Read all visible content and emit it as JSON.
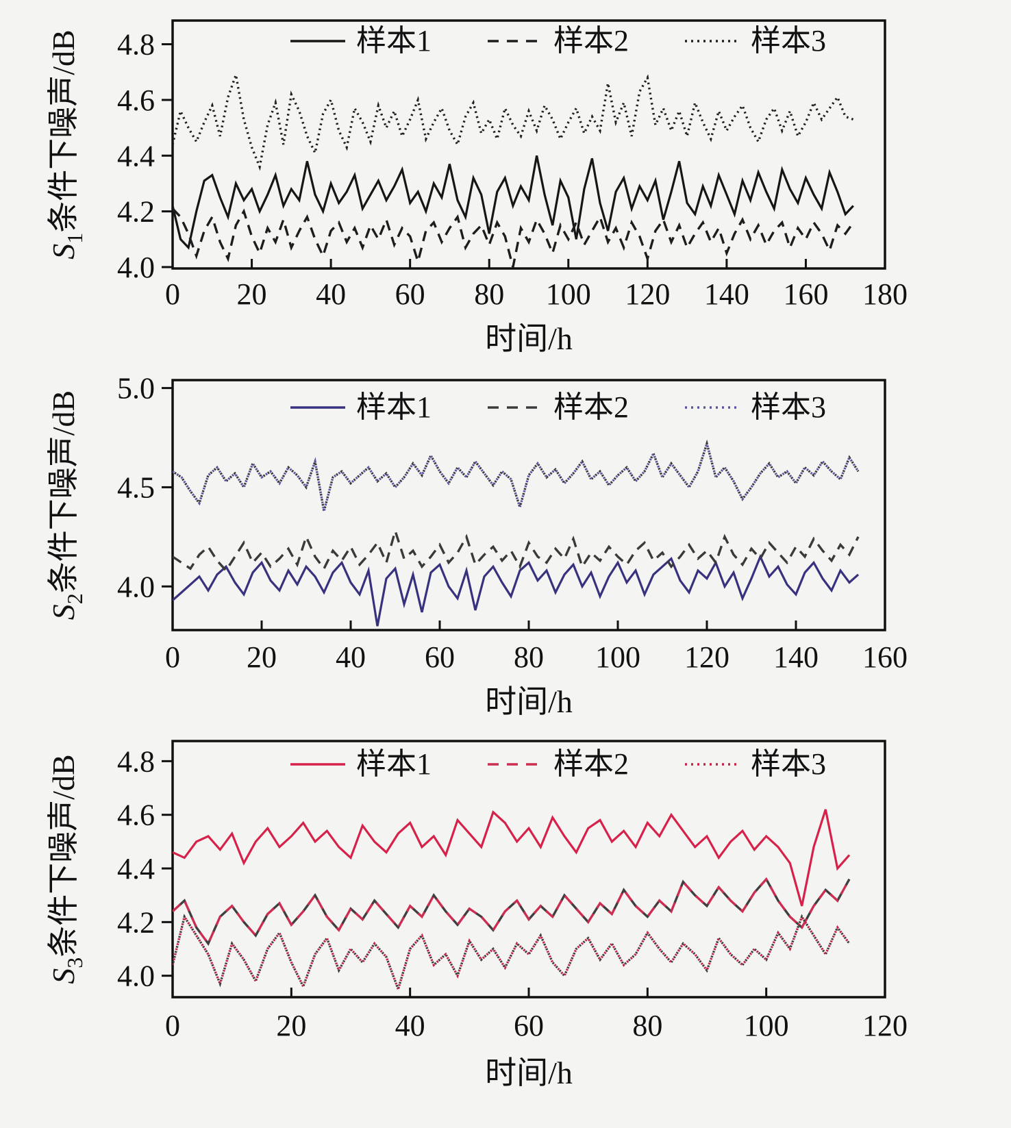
{
  "figure": {
    "background": "#f4f4f2",
    "frame_color": "#111111"
  },
  "chart_data": [
    {
      "type": "line",
      "title": "",
      "y_label": {
        "prefix": "S",
        "sub": "1",
        "rest": "条件下噪声/dB"
      },
      "x_label": "时间/h",
      "x_range": [
        0,
        180
      ],
      "x_ticks": [
        0,
        20,
        40,
        60,
        80,
        100,
        120,
        140,
        160,
        180
      ],
      "y_range": [
        3.995,
        4.885
      ],
      "y_ticks": [
        {
          "label": "4.8",
          "value": 4.8
        },
        {
          "label": "4.6",
          "value": 4.6
        },
        {
          "label": "4.4",
          "value": 4.4
        },
        {
          "label": "4.2",
          "value": 4.2
        },
        {
          "label": "4.0",
          "value": 4.0
        }
      ],
      "grid": false,
      "legend_position": "top-inside",
      "legend": [
        {
          "label": "样本1",
          "style": "solid"
        },
        {
          "label": "样本2",
          "style": "dashed"
        },
        {
          "label": "样本3",
          "style": "dotted"
        }
      ],
      "series": [
        {
          "name": "样本1",
          "style": "solid",
          "color": "#161616",
          "x_start": 0,
          "x_step": 2,
          "values": [
            4.22,
            4.1,
            4.07,
            4.2,
            4.31,
            4.33,
            4.25,
            4.18,
            4.3,
            4.24,
            4.28,
            4.2,
            4.26,
            4.33,
            4.22,
            4.28,
            4.24,
            4.38,
            4.26,
            4.2,
            4.3,
            4.23,
            4.27,
            4.33,
            4.21,
            4.26,
            4.31,
            4.24,
            4.29,
            4.35,
            4.23,
            4.27,
            4.2,
            4.3,
            4.25,
            4.37,
            4.24,
            4.18,
            4.32,
            4.26,
            4.12,
            4.27,
            4.32,
            4.22,
            4.29,
            4.24,
            4.4,
            4.26,
            4.15,
            4.31,
            4.25,
            4.1,
            4.28,
            4.39,
            4.23,
            4.13,
            4.27,
            4.32,
            4.21,
            4.29,
            4.24,
            4.31,
            4.17,
            4.27,
            4.38,
            4.23,
            4.19,
            4.29,
            4.22,
            4.33,
            4.26,
            4.19,
            4.31,
            4.24,
            4.34,
            4.27,
            4.21,
            4.35,
            4.28,
            4.23,
            4.32,
            4.26,
            4.21,
            4.34,
            4.27,
            4.19,
            4.22
          ]
        },
        {
          "name": "样本2",
          "style": "dashed",
          "color": "#1d1d1d",
          "x_start": 0,
          "x_step": 2,
          "values": [
            4.21,
            4.18,
            4.12,
            4.04,
            4.13,
            4.18,
            4.09,
            4.03,
            4.15,
            4.2,
            4.11,
            4.05,
            4.14,
            4.09,
            4.17,
            4.07,
            4.13,
            4.18,
            4.1,
            4.04,
            4.13,
            4.16,
            4.09,
            4.14,
            4.07,
            4.15,
            4.1,
            4.17,
            4.08,
            4.14,
            4.11,
            4.02,
            4.13,
            4.16,
            4.09,
            4.14,
            4.18,
            4.07,
            4.12,
            4.15,
            4.08,
            4.16,
            4.11,
            4.0,
            4.14,
            4.09,
            4.17,
            4.12,
            4.05,
            4.15,
            4.1,
            4.16,
            4.08,
            4.13,
            4.18,
            4.09,
            4.14,
            4.07,
            4.16,
            4.11,
            4.03,
            4.13,
            4.17,
            4.09,
            4.15,
            4.07,
            4.12,
            4.16,
            4.09,
            4.14,
            4.05,
            4.12,
            4.17,
            4.1,
            4.15,
            4.08,
            4.13,
            4.16,
            4.07,
            4.14,
            4.1,
            4.16,
            4.12,
            4.06,
            4.15,
            4.12,
            4.16
          ]
        },
        {
          "name": "样本3",
          "style": "dotted",
          "color": "#202020",
          "x_start": 0,
          "x_step": 2,
          "values": [
            4.44,
            4.56,
            4.5,
            4.45,
            4.52,
            4.58,
            4.47,
            4.61,
            4.69,
            4.53,
            4.43,
            4.36,
            4.51,
            4.59,
            4.44,
            4.62,
            4.56,
            4.47,
            4.41,
            4.55,
            4.6,
            4.49,
            4.43,
            4.57,
            4.52,
            4.45,
            4.58,
            4.5,
            4.56,
            4.47,
            4.53,
            4.6,
            4.46,
            4.52,
            4.57,
            4.49,
            4.44,
            4.54,
            4.59,
            4.48,
            4.53,
            4.46,
            4.57,
            4.51,
            4.47,
            4.56,
            4.49,
            4.58,
            4.53,
            4.46,
            4.52,
            4.57,
            4.48,
            4.54,
            4.49,
            4.66,
            4.52,
            4.59,
            4.47,
            4.63,
            4.68,
            4.51,
            4.57,
            4.49,
            4.56,
            4.47,
            4.59,
            4.52,
            4.46,
            4.56,
            4.49,
            4.54,
            4.58,
            4.5,
            4.45,
            4.53,
            4.57,
            4.49,
            4.56,
            4.47,
            4.52,
            4.59,
            4.53,
            4.57,
            4.61,
            4.54,
            4.53
          ]
        }
      ]
    },
    {
      "type": "line",
      "title": "",
      "y_label": {
        "prefix": "S",
        "sub": "2",
        "rest": "条件下噪声/dB"
      },
      "x_label": "时间/h",
      "x_range": [
        0,
        160
      ],
      "x_ticks": [
        0,
        20,
        40,
        60,
        80,
        100,
        120,
        140,
        160
      ],
      "y_range": [
        3.78,
        5.04
      ],
      "y_ticks": [
        {
          "label": "5.0",
          "value": 5.0
        },
        {
          "label": "4.5",
          "value": 4.5
        },
        {
          "label": "4.0",
          "value": 4.0
        }
      ],
      "grid": false,
      "legend_position": "top-inside",
      "legend": [
        {
          "label": "样本1",
          "style": "solid"
        },
        {
          "label": "样本2",
          "style": "dashed"
        },
        {
          "label": "样本3",
          "style": "dotted"
        }
      ],
      "series": [
        {
          "name": "样本1",
          "style": "solid",
          "color": "#38327e",
          "x_start": 0,
          "x_step": 2,
          "values": [
            3.93,
            3.97,
            4.01,
            4.05,
            3.98,
            4.06,
            4.1,
            4.02,
            3.96,
            4.07,
            4.12,
            4.03,
            3.98,
            4.08,
            4.01,
            4.1,
            4.05,
            3.97,
            4.07,
            4.12,
            4.02,
            3.96,
            4.08,
            3.8,
            4.04,
            4.09,
            3.91,
            4.06,
            3.87,
            4.07,
            4.11,
            4.0,
            3.94,
            4.08,
            3.88,
            4.05,
            4.1,
            4.02,
            3.95,
            4.08,
            4.12,
            4.03,
            4.08,
            3.97,
            4.06,
            4.11,
            4.0,
            4.07,
            3.95,
            4.05,
            4.12,
            4.02,
            4.08,
            3.96,
            4.06,
            4.1,
            4.14,
            4.03,
            3.97,
            4.08,
            4.04,
            4.12,
            4.0,
            4.07,
            3.94,
            4.04,
            4.15,
            4.05,
            4.1,
            4.01,
            3.96,
            4.07,
            4.12,
            4.04,
            3.98,
            4.08,
            4.02,
            4.06
          ]
        },
        {
          "name": "样本2",
          "style": "dashed",
          "color": "#3a3a3a",
          "x_start": 0,
          "x_step": 2,
          "values": [
            4.15,
            4.12,
            4.09,
            4.16,
            4.2,
            4.13,
            4.08,
            4.15,
            4.22,
            4.12,
            4.17,
            4.1,
            4.14,
            4.19,
            4.11,
            4.25,
            4.15,
            4.09,
            4.18,
            4.13,
            4.2,
            4.11,
            4.16,
            4.22,
            4.12,
            4.28,
            4.14,
            4.18,
            4.1,
            4.15,
            4.21,
            4.12,
            4.17,
            4.25,
            4.11,
            4.16,
            4.2,
            4.13,
            4.18,
            4.1,
            4.22,
            4.15,
            4.12,
            4.19,
            4.14,
            4.24,
            4.1,
            4.17,
            4.13,
            4.2,
            4.15,
            4.11,
            4.18,
            4.22,
            4.13,
            4.17,
            4.1,
            4.15,
            4.21,
            4.14,
            4.18,
            4.12,
            4.25,
            4.16,
            4.11,
            4.19,
            4.14,
            4.22,
            4.17,
            4.12,
            4.2,
            4.15,
            4.24,
            4.18,
            4.13,
            4.21,
            4.16,
            4.25
          ]
        },
        {
          "name": "样本3",
          "style": "dotted",
          "color": "#5a55a0",
          "shadow_color": "#3a3a3a",
          "x_start": 0,
          "x_step": 2,
          "values": [
            4.58,
            4.55,
            4.48,
            4.42,
            4.56,
            4.6,
            4.53,
            4.57,
            4.5,
            4.62,
            4.55,
            4.58,
            4.52,
            4.6,
            4.56,
            4.5,
            4.63,
            4.38,
            4.55,
            4.58,
            4.52,
            4.56,
            4.6,
            4.53,
            4.57,
            4.5,
            4.55,
            4.62,
            4.56,
            4.66,
            4.58,
            4.52,
            4.6,
            4.55,
            4.63,
            4.57,
            4.51,
            4.58,
            4.54,
            4.4,
            4.56,
            4.62,
            4.55,
            4.59,
            4.52,
            4.57,
            4.63,
            4.54,
            4.58,
            4.51,
            4.56,
            4.6,
            4.53,
            4.58,
            4.67,
            4.55,
            4.62,
            4.56,
            4.5,
            4.58,
            4.72,
            4.55,
            4.6,
            4.53,
            4.44,
            4.5,
            4.57,
            4.62,
            4.55,
            4.58,
            4.52,
            4.6,
            4.56,
            4.63,
            4.58,
            4.54,
            4.65,
            4.58
          ]
        }
      ]
    },
    {
      "type": "line",
      "title": "",
      "y_label": {
        "prefix": "S",
        "sub": "3",
        "rest": "条件下噪声/dB"
      },
      "x_label": "时间/h",
      "x_range": [
        0,
        120
      ],
      "x_ticks": [
        0,
        20,
        40,
        60,
        80,
        100,
        120
      ],
      "y_range": [
        3.92,
        4.875
      ],
      "y_ticks": [
        {
          "label": "4.8",
          "value": 4.8
        },
        {
          "label": "4.6",
          "value": 4.6
        },
        {
          "label": "4.4",
          "value": 4.4
        },
        {
          "label": "4.2",
          "value": 4.2
        },
        {
          "label": "4.0",
          "value": 4.0
        }
      ],
      "grid": false,
      "legend_position": "top-inside",
      "legend": [
        {
          "label": "样本1",
          "style": "solid"
        },
        {
          "label": "样本2",
          "style": "dashed"
        },
        {
          "label": "样本3",
          "style": "dotted"
        }
      ],
      "series": [
        {
          "name": "样本1",
          "style": "solid",
          "color": "#d6224a",
          "x_start": 0,
          "x_step": 2,
          "values": [
            4.46,
            4.44,
            4.5,
            4.52,
            4.47,
            4.53,
            4.42,
            4.5,
            4.55,
            4.48,
            4.52,
            4.57,
            4.5,
            4.54,
            4.48,
            4.44,
            4.56,
            4.5,
            4.46,
            4.53,
            4.57,
            4.48,
            4.52,
            4.45,
            4.58,
            4.53,
            4.48,
            4.61,
            4.57,
            4.5,
            4.55,
            4.48,
            4.59,
            4.52,
            4.46,
            4.55,
            4.58,
            4.5,
            4.54,
            4.48,
            4.57,
            4.52,
            4.6,
            4.54,
            4.48,
            4.52,
            4.44,
            4.5,
            4.54,
            4.47,
            4.52,
            4.48,
            4.42,
            4.26,
            4.48,
            4.62,
            4.4,
            4.45
          ]
        },
        {
          "name": "样本2",
          "style": "dashed",
          "color": "#cc2e52",
          "shadow_color": "#3f3f3f",
          "x_start": 0,
          "x_step": 2,
          "values": [
            4.24,
            4.28,
            4.18,
            4.12,
            4.22,
            4.26,
            4.2,
            4.15,
            4.23,
            4.27,
            4.19,
            4.24,
            4.3,
            4.22,
            4.17,
            4.25,
            4.21,
            4.28,
            4.23,
            4.18,
            4.26,
            4.22,
            4.3,
            4.24,
            4.19,
            4.25,
            4.22,
            4.17,
            4.24,
            4.28,
            4.21,
            4.26,
            4.22,
            4.3,
            4.25,
            4.2,
            4.27,
            4.23,
            4.32,
            4.26,
            4.22,
            4.28,
            4.24,
            4.35,
            4.3,
            4.26,
            4.33,
            4.28,
            4.24,
            4.31,
            4.36,
            4.28,
            4.22,
            4.18,
            4.26,
            4.32,
            4.28,
            4.36
          ]
        },
        {
          "name": "样本3",
          "style": "dotted",
          "color": "#c22448",
          "shadow_color": "#3f3f3f",
          "x_start": 0,
          "x_step": 2,
          "values": [
            4.04,
            4.22,
            4.15,
            4.08,
            3.97,
            4.12,
            4.06,
            3.98,
            4.1,
            4.16,
            4.05,
            3.96,
            4.08,
            4.14,
            4.02,
            4.1,
            4.05,
            4.12,
            4.07,
            3.95,
            4.1,
            4.15,
            4.04,
            4.08,
            4.0,
            4.13,
            4.06,
            4.1,
            4.03,
            4.12,
            4.08,
            4.15,
            4.05,
            4.0,
            4.1,
            4.14,
            4.06,
            4.12,
            4.04,
            4.08,
            4.16,
            4.1,
            4.05,
            4.12,
            4.08,
            4.02,
            4.14,
            4.08,
            4.04,
            4.1,
            4.06,
            4.16,
            4.1,
            4.22,
            4.15,
            4.08,
            4.18,
            4.12
          ]
        }
      ]
    }
  ]
}
